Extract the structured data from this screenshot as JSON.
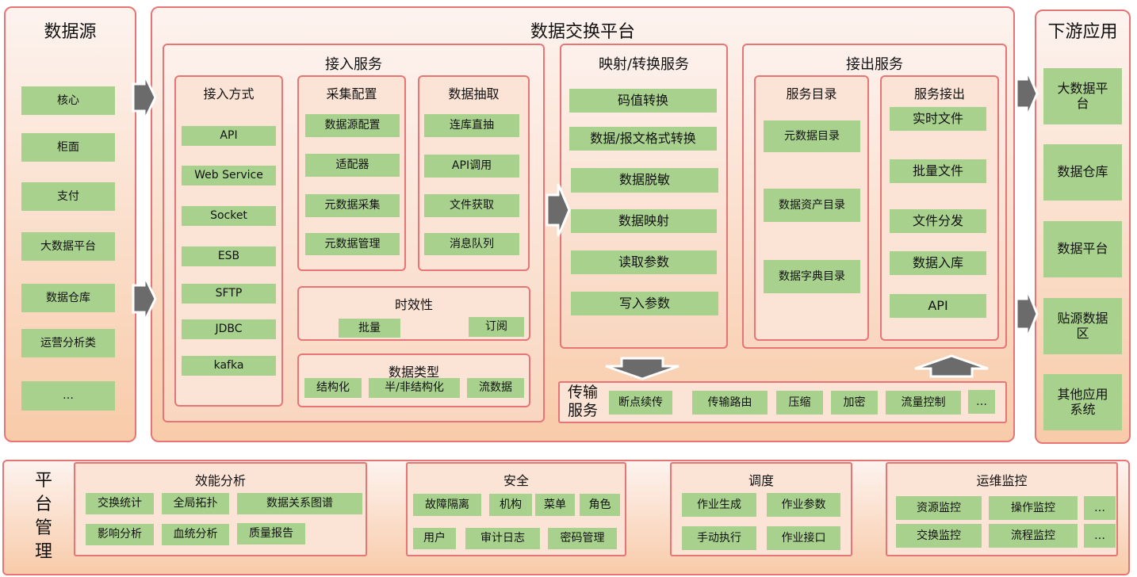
{
  "colors": {
    "border": "#e87575",
    "panel_top": "#fdf3ef",
    "panel_bottom": "#f8cba9",
    "item": "#a9d18e",
    "arrow": "#6b6b6b"
  },
  "source": {
    "title": "数据源",
    "items": [
      "核心",
      "柜面",
      "支付",
      "大数据平台",
      "数据仓库",
      "运营分析类",
      "…"
    ]
  },
  "platform": {
    "title": "数据交换平台",
    "access": {
      "title": "接入服务",
      "methods": {
        "title": "接入方式",
        "items": [
          "API",
          "Web Service",
          "Socket",
          "ESB",
          "SFTP",
          "JDBC",
          "kafka"
        ]
      },
      "collect": {
        "title": "采集配置",
        "items": [
          "数据源配置",
          "适配器",
          "元数据采集",
          "元数据管理"
        ]
      },
      "extract": {
        "title": "数据抽取",
        "items": [
          "连库直抽",
          "API调用",
          "文件获取",
          "消息队列"
        ]
      },
      "timeliness": {
        "title": "时效性",
        "items": [
          "批量",
          "订阅"
        ]
      },
      "datatype": {
        "title": "数据类型",
        "items": [
          "结构化",
          "半/非结构化",
          "流数据"
        ]
      }
    },
    "mapping": {
      "title": "映射/转换服务",
      "items": [
        "码值转换",
        "数据/报文格式转换",
        "数据脱敏",
        "数据映射",
        "读取参数",
        "写入参数"
      ]
    },
    "output": {
      "title": "接出服务",
      "catalog": {
        "title": "服务目录",
        "items": [
          "元数据目录",
          "数据资产目录",
          "数据字典目录"
        ]
      },
      "export": {
        "title": "服务接出",
        "items": [
          "实时文件",
          "批量文件",
          "文件分发",
          "数据入库",
          "API"
        ]
      }
    },
    "transfer": {
      "title": "传输服务",
      "items": [
        "断点续传",
        "传输路由",
        "压缩",
        "加密",
        "流量控制",
        "…"
      ]
    }
  },
  "downstream": {
    "title": "下游应用",
    "items": [
      "大数据平台",
      "数据仓库",
      "数据平台",
      "贴源数据区",
      "其他应用系统"
    ]
  },
  "management": {
    "title": "平台管理",
    "perf": {
      "title": "效能分析",
      "items": [
        "交换统计",
        "全局拓扑",
        "数据关系图谱",
        "影响分析",
        "血统分析",
        "质量报告"
      ]
    },
    "security": {
      "title": "安全",
      "items": [
        "故障隔离",
        "机构",
        "菜单",
        "角色",
        "用户",
        "审计日志",
        "密码管理"
      ]
    },
    "schedule": {
      "title": "调度",
      "items": [
        "作业生成",
        "作业参数",
        "手动执行",
        "作业接口"
      ]
    },
    "ops": {
      "title": "运维监控",
      "items": [
        "资源监控",
        "操作监控",
        "…",
        "交换监控",
        "流程监控",
        "…"
      ]
    }
  }
}
